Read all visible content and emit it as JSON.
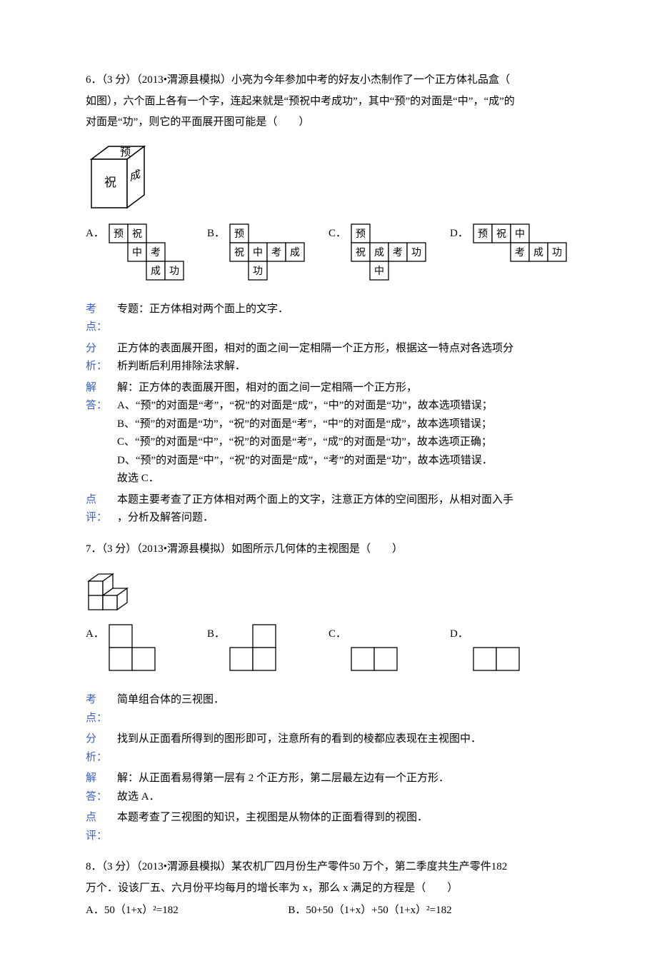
{
  "colors": {
    "text": "#000000",
    "label": "#3a5fc8",
    "bg": "#ffffff",
    "stroke": "#000000"
  },
  "q6": {
    "stem1": "6．（3 分）（2013•渭源县模拟）小亮为今年参加中考的好友小杰制作了一个正方体礼品盒（",
    "stem2": "如图），六个面上各有一个字，连起来就是“预祝中考成功”，其中“预”的对面是“中”，“成”的",
    "stem3": "对面是“功”，则它的平面展开图可能是（　　）",
    "cube_face_top": "预",
    "cube_face_right": "成",
    "cube_face_front": "祝",
    "opts": {
      "A": {
        "r1": [
          "预",
          "祝",
          "",
          ""
        ],
        "r2": [
          "",
          "中",
          "考",
          ""
        ],
        "r3": [
          "",
          "",
          "成",
          "功"
        ]
      },
      "B": {
        "r1": [
          "预",
          "",
          "",
          ""
        ],
        "r2": [
          "祝",
          "中",
          "考",
          "成"
        ],
        "r3": [
          "",
          "功",
          "",
          ""
        ]
      },
      "C": {
        "r1": [
          "预",
          "",
          "",
          ""
        ],
        "r2": [
          "祝",
          "成",
          "考",
          "功"
        ],
        "r3": [
          "",
          "中",
          "",
          ""
        ]
      },
      "D": {
        "r1": [
          "预",
          "祝",
          "中",
          ""
        ],
        "r2": [
          "",
          "",
          "考",
          "成",
          "功"
        ]
      }
    },
    "opt_labels": {
      "A": "A．",
      "B": "B．",
      "C": "C．",
      "D": "D．"
    },
    "kaodian_label": "考点：",
    "kaodian": "专题：正方体相对两个面上的文字．",
    "fenxi_label": "分析：",
    "fenxi": "正方体的表面展开图，相对的面之间一定相隔一个正方形，根据这一特点对各选项分\n析判断后利用排除法求解．",
    "jieda_label": "解答：",
    "jieda_lines": [
      "解：正方体的表面展开图，相对的面之间一定相隔一个正方形，",
      "A、“预”的对面是“考”，“祝”的对面是“成”，“中”的对面是“功”，故本选项错误；",
      "B、“预”的对面是“功”，“祝”的对面是“考”，“中”的对面是“成”，故本选项错误；",
      "C、“预”的对面是“中”，“祝”的对面是“考”，“成”的对面是“功”，故本选项正确；",
      "D、“预”的对面是“中”，“祝”的对面是“成”，“考”的对面是“功”，故本选项错误．",
      "故选 C．"
    ],
    "dianping_label": "点评：",
    "dianping": "本题主要考查了正方体相对两个面上的文字，注意正方体的空间图形，从相对面入手\n，分析及解答问题．"
  },
  "q7": {
    "stem": "7．（3 分）（2013•渭源县模拟）如图所示几何体的主视图是（　　）",
    "opt_labels": {
      "A": "A．",
      "B": "B．",
      "C": "C．",
      "D": "D．"
    },
    "opts": {
      "A": {
        "pattern": [
          [
            1,
            0
          ],
          [
            1,
            1
          ]
        ]
      },
      "B": {
        "pattern": [
          [
            0,
            1
          ],
          [
            1,
            1
          ]
        ]
      },
      "C": {
        "pattern": [
          [
            0,
            0
          ],
          [
            1,
            1
          ]
        ]
      },
      "D": {
        "pattern": [
          [
            0,
            0
          ],
          [
            1,
            1
          ]
        ]
      }
    },
    "kaodian_label": "考点：",
    "kaodian": "简单组合体的三视图．",
    "fenxi_label": "分析：",
    "fenxi": "找到从正面看所得到的图形即可，注意所有的看到的棱都应表现在主视图中．",
    "jieda_label": "解答：",
    "jieda_lines": [
      "解：从正面看易得第一层有 2 个正方形，第二层最左边有一个正方形．",
      "故选 A．"
    ],
    "dianping_label": "点评：",
    "dianping": "本题考查了三视图的知识，主视图是从物体的正面看得到的视图．"
  },
  "q8": {
    "stem1": "8．（3 分）（2013•渭源县模拟）某农机厂四月份生产零件50 万个，第二季度共生产零件182",
    "stem2": "万个．设该厂五、六月份平均每月的增长率为 x，那么 x 满足的方程是（　　）",
    "optA_label": "A．",
    "optA": "50（1+x）²=182",
    "optB_label": "B．",
    "optB": "50+50（1+x）+50（1+x）²=182"
  },
  "net_cell": 26,
  "grid_cell": 32
}
